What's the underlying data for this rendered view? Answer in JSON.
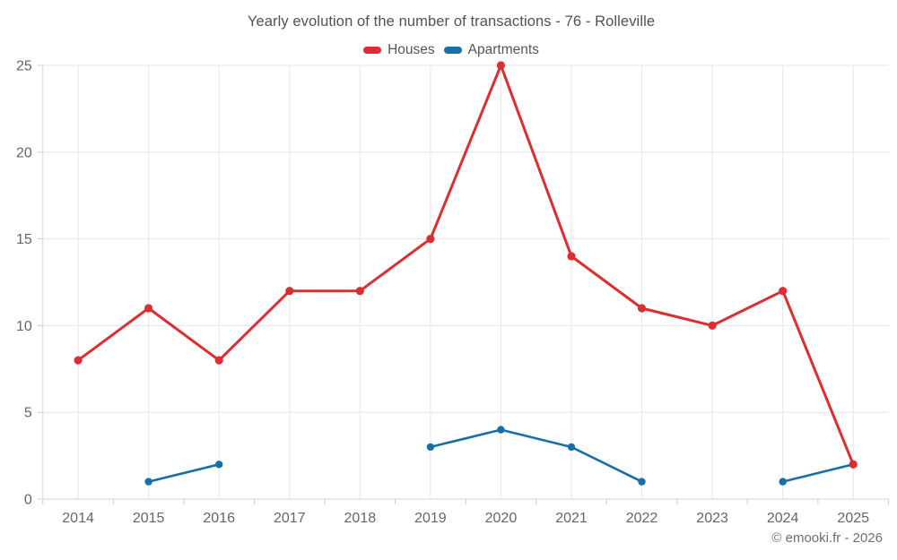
{
  "title": "Yearly evolution of the number of transactions - 76 - Rolleville",
  "copyright": "© emooki.fr - 2026",
  "colors": {
    "background": "#ffffff",
    "grid": "#e6e6e6",
    "axis": "#d6d6d6",
    "tick": "#cccccc",
    "axis_label": "#666666",
    "title_text": "#525252",
    "legend_text": "#555555",
    "copyright_text": "#6e6e6e",
    "houses": "#dc2e31",
    "apartments": "#176fa5"
  },
  "chart_data": {
    "type": "line",
    "title": "Yearly evolution of the number of transactions - 76 - Rolleville",
    "xlabel": "",
    "ylabel": "",
    "categories": [
      "2014",
      "2015",
      "2016",
      "2017",
      "2018",
      "2019",
      "2020",
      "2021",
      "2022",
      "2023",
      "2024",
      "2025"
    ],
    "series": [
      {
        "name": "Houses",
        "color": "#dc2e31",
        "values": [
          8,
          11,
          8,
          12,
          12,
          15,
          25,
          14,
          11,
          10,
          12,
          2
        ]
      },
      {
        "name": "Apartments",
        "color": "#176fa5",
        "values": [
          null,
          1,
          2,
          null,
          null,
          3,
          4,
          3,
          1,
          null,
          1,
          2
        ]
      }
    ],
    "ylim": [
      0,
      25
    ],
    "yticks": [
      0,
      5,
      10,
      15,
      20,
      25
    ],
    "grid": true,
    "legend_position": "top"
  }
}
